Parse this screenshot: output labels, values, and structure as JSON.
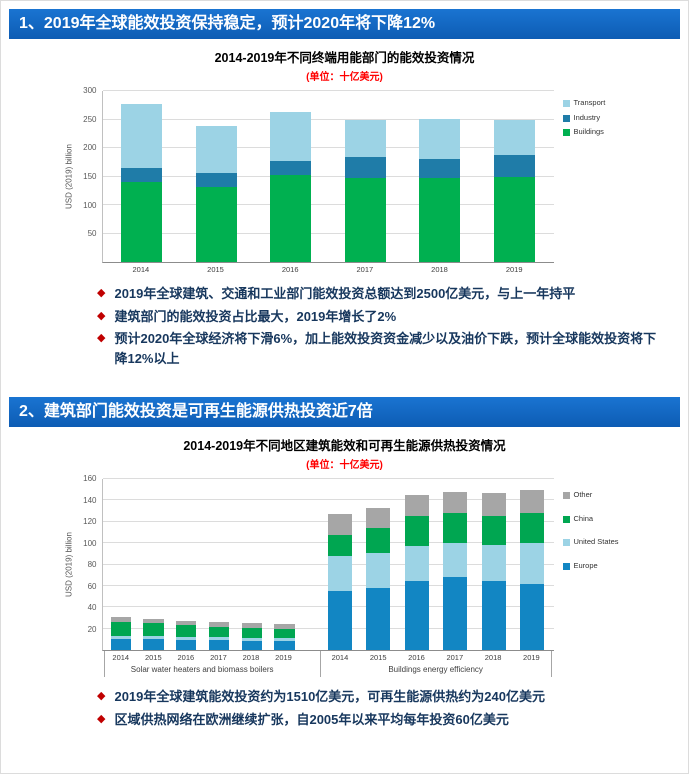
{
  "colors": {
    "banner_blue": "#0d5cb4",
    "subtitle_red": "#ff0000",
    "bullet_diamond_red": "#c00000",
    "bullet_text": "#17375d"
  },
  "section1": {
    "banner": "1、2019年全球能效投资保持稳定，预计2020年将下降12%",
    "bullets": [
      "2019年全球建筑、交通和工业部门能效投资总额达到2500亿美元，与上一年持平",
      "建筑部门的能效投资占比最大，2019年增长了2%",
      "预计2020年全球经济将下滑6%，加上能效投资资金减少以及油价下跌，预计全球能效投资将下降12%以上"
    ]
  },
  "section2": {
    "banner": "2、建筑部门能效投资是可再生能源供热投资近7倍",
    "bullets": [
      "2019年全球建筑能效投资约为1510亿美元，可再生能源供热约为240亿美元",
      "区域供热网络在欧洲继续扩张，自2005年以来平均每年投资60亿美元"
    ]
  },
  "chart_data": [
    {
      "type": "bar",
      "stacked": true,
      "title": "2014-2019年不同终端用能部门的能效投资情况",
      "subtitle": "(单位：十亿美元)",
      "ylabel": "USD (2019) billion",
      "ylim": [
        0,
        300
      ],
      "ytick_step": 50,
      "grid": true,
      "legend_position": "right",
      "categories": [
        "2014",
        "2015",
        "2016",
        "2017",
        "2018",
        "2019"
      ],
      "series": [
        {
          "name": "Buildings",
          "color": "#00B050",
          "values": [
            140,
            132,
            152,
            148,
            148,
            150
          ]
        },
        {
          "name": "Industry",
          "color": "#1F7CA8",
          "values": [
            25,
            24,
            26,
            36,
            32,
            38
          ]
        },
        {
          "name": "Transport",
          "color": "#9CD3E5",
          "values": [
            112,
            82,
            85,
            66,
            71,
            62
          ]
        }
      ],
      "legend": [
        {
          "label": "Transport",
          "color": "#9CD3E5"
        },
        {
          "label": "Industry",
          "color": "#1F7CA8"
        },
        {
          "label": "Buildings",
          "color": "#00B050"
        }
      ]
    },
    {
      "type": "bar",
      "stacked": true,
      "title": "2014-2019年不同地区建筑能效和可再生能源供热投资情况",
      "subtitle": "(单位：十亿美元)",
      "ylabel": "USD (2019) billion",
      "ylim": [
        0,
        160
      ],
      "ytick_step": 20,
      "grid": true,
      "legend_position": "right",
      "groups": [
        {
          "label": "Solar water heaters and biomass boilers",
          "flex": 0.85,
          "categories": [
            "2014",
            "2015",
            "2016",
            "2017",
            "2018",
            "2019"
          ],
          "series": [
            {
              "name": "Europe",
              "color": "#1286C3",
              "values": [
                10,
                10,
                9,
                9,
                8,
                8
              ]
            },
            {
              "name": "United States",
              "color": "#9CD3E5",
              "values": [
                3,
                3,
                3,
                3,
                3,
                3
              ]
            },
            {
              "name": "China",
              "color": "#00A651",
              "values": [
                13,
                12,
                11,
                10,
                10,
                9
              ]
            },
            {
              "name": "Other",
              "color": "#A6A6A6",
              "values": [
                5,
                4,
                4,
                4,
                4,
                4
              ]
            }
          ]
        },
        {
          "label": "Buildings energy efficiency",
          "flex": 1,
          "categories": [
            "2014",
            "2015",
            "2016",
            "2017",
            "2018",
            "2019"
          ],
          "series": [
            {
              "name": "Europe",
              "color": "#1286C3",
              "values": [
                55,
                58,
                65,
                68,
                65,
                62
              ]
            },
            {
              "name": "United States",
              "color": "#9CD3E5",
              "values": [
                33,
                33,
                32,
                32,
                33,
                38
              ]
            },
            {
              "name": "China",
              "color": "#00A651",
              "values": [
                20,
                23,
                28,
                28,
                27,
                28
              ]
            },
            {
              "name": "Other",
              "color": "#A6A6A6",
              "values": [
                19,
                19,
                20,
                20,
                22,
                22
              ]
            }
          ]
        }
      ],
      "legend": [
        {
          "label": "Other",
          "color": "#A6A6A6"
        },
        {
          "label": "China",
          "color": "#00A651"
        },
        {
          "label": "United States",
          "color": "#9CD3E5"
        },
        {
          "label": "Europe",
          "color": "#1286C3"
        }
      ]
    }
  ]
}
